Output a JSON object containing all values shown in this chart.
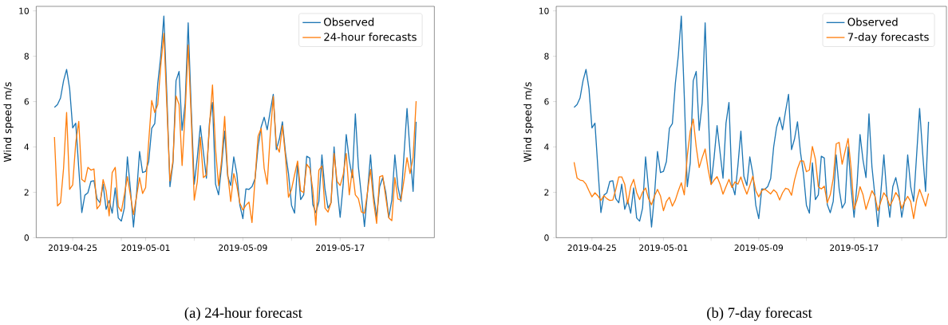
{
  "chart_data": [
    {
      "type": "line",
      "ylabel": "Wind speed m/s",
      "annotations": [
        "(a) 24-hour forecast"
      ],
      "legend": "top right",
      "x": [
        "2019-04-23T12:00",
        "2019-04-23T18:00",
        "2019-04-24T00:00",
        "2019-04-24T06:00",
        "2019-04-24T12:00",
        "2019-04-24T18:00",
        "2019-04-25T00:00",
        "2019-04-25T06:00",
        "2019-04-25T12:00",
        "2019-04-25T18:00",
        "2019-04-26T00:00",
        "2019-04-26T06:00",
        "2019-04-26T12:00",
        "2019-04-26T18:00",
        "2019-04-27T00:00",
        "2019-04-27T06:00",
        "2019-04-27T12:00",
        "2019-04-27T18:00",
        "2019-04-28T00:00",
        "2019-04-28T06:00",
        "2019-04-28T12:00",
        "2019-04-28T18:00",
        "2019-04-29T00:00",
        "2019-04-29T06:00",
        "2019-04-29T12:00",
        "2019-04-29T18:00",
        "2019-04-30T00:00",
        "2019-04-30T06:00",
        "2019-04-30T12:00",
        "2019-04-30T18:00",
        "2019-05-01T00:00",
        "2019-05-01T06:00",
        "2019-05-01T12:00",
        "2019-05-01T18:00",
        "2019-05-02T00:00",
        "2019-05-02T06:00",
        "2019-05-02T12:00",
        "2019-05-02T18:00",
        "2019-05-03T00:00",
        "2019-05-03T06:00",
        "2019-05-03T12:00",
        "2019-05-03T18:00",
        "2019-05-04T00:00",
        "2019-05-04T06:00",
        "2019-05-04T12:00",
        "2019-05-04T18:00",
        "2019-05-05T00:00",
        "2019-05-05T06:00",
        "2019-05-05T12:00",
        "2019-05-05T18:00",
        "2019-05-06T00:00",
        "2019-05-06T06:00",
        "2019-05-06T12:00",
        "2019-05-06T18:00",
        "2019-05-07T00:00",
        "2019-05-07T06:00",
        "2019-05-07T12:00",
        "2019-05-07T18:00",
        "2019-05-08T00:00",
        "2019-05-08T06:00",
        "2019-05-08T12:00",
        "2019-05-08T18:00",
        "2019-05-09T00:00",
        "2019-05-09T06:00",
        "2019-05-09T12:00",
        "2019-05-09T18:00",
        "2019-05-10T00:00",
        "2019-05-10T06:00",
        "2019-05-10T12:00",
        "2019-05-10T18:00",
        "2019-05-11T00:00",
        "2019-05-11T06:00",
        "2019-05-11T12:00",
        "2019-05-11T18:00",
        "2019-05-12T00:00",
        "2019-05-12T06:00",
        "2019-05-12T12:00",
        "2019-05-12T18:00",
        "2019-05-13T00:00",
        "2019-05-13T06:00",
        "2019-05-13T12:00",
        "2019-05-13T18:00",
        "2019-05-14T00:00",
        "2019-05-14T06:00",
        "2019-05-14T12:00",
        "2019-05-14T18:00",
        "2019-05-15T00:00",
        "2019-05-15T06:00",
        "2019-05-15T12:00",
        "2019-05-15T18:00",
        "2019-05-16T00:00",
        "2019-05-16T06:00",
        "2019-05-16T12:00",
        "2019-05-16T18:00",
        "2019-05-17T00:00",
        "2019-05-17T06:00",
        "2019-05-17T12:00",
        "2019-05-17T18:00",
        "2019-05-18T00:00",
        "2019-05-18T06:00",
        "2019-05-18T12:00",
        "2019-05-18T18:00",
        "2019-05-19T00:00",
        "2019-05-19T06:00",
        "2019-05-19T12:00",
        "2019-05-19T18:00",
        "2019-05-20T00:00",
        "2019-05-20T06:00",
        "2019-05-20T12:00",
        "2019-05-20T18:00",
        "2019-05-21T00:00",
        "2019-05-21T06:00",
        "2019-05-21T12:00",
        "2019-05-21T18:00",
        "2019-05-22T00:00",
        "2019-05-22T06:00",
        "2019-05-22T12:00",
        "2019-05-22T18:00",
        "2019-05-23T00:00",
        "2019-05-23T06:00"
      ],
      "series": [
        {
          "name": "Observed",
          "color": "#1f77b4",
          "values": [
            5.75,
            5.87,
            6.16,
            6.92,
            7.42,
            6.57,
            4.84,
            5.05,
            3.06,
            1.11,
            1.87,
            1.98,
            2.48,
            2.51,
            1.72,
            1.54,
            2.36,
            1.25,
            1.64,
            1.08,
            2.19,
            0.87,
            0.73,
            1.31,
            3.56,
            2.13,
            0.47,
            1.89,
            3.8,
            2.87,
            2.92,
            3.36,
            4.82,
            5.03,
            6.81,
            8.04,
            9.77,
            6.22,
            2.25,
            3.3,
            6.92,
            7.33,
            4.73,
            5.93,
            9.47,
            5.7,
            2.36,
            3.53,
            4.94,
            3.77,
            2.62,
            5.05,
            5.96,
            2.36,
            1.89,
            3.18,
            4.7,
            2.71,
            2.3,
            3.56,
            2.83,
            1.43,
            0.84,
            2.15,
            2.13,
            2.25,
            2.6,
            4.0,
            4.88,
            5.31,
            4.76,
            5.58,
            6.32,
            3.88,
            4.35,
            5.11,
            3.77,
            2.83,
            1.43,
            1.08,
            3.3,
            1.68,
            1.89,
            3.59,
            3.51,
            1.46,
            1.1,
            1.6,
            3.65,
            2.13,
            1.31,
            1.54,
            4.0,
            2.19,
            0.9,
            2.36,
            4.55,
            3.42,
            2.65,
            5.46,
            3.12,
            1.84,
            0.49,
            2.01,
            3.65,
            1.89,
            0.9,
            2.25,
            2.65,
            2.01,
            0.9,
            1.66,
            3.65,
            2.25,
            1.6,
            3.65,
            5.7,
            3.77,
            2.04,
            5.11
          ]
        },
        {
          "name": "24-hour forecasts",
          "color": "#ff7f0e",
          "values": [
            4.44,
            1.4,
            1.54,
            3.06,
            5.52,
            2.13,
            2.33,
            4.18,
            5.13,
            2.57,
            2.46,
            3.1,
            2.98,
            3.03,
            1.27,
            1.45,
            2.56,
            2.07,
            0.96,
            2.87,
            3.1,
            1.37,
            1.16,
            1.89,
            2.69,
            1.87,
            1.02,
            1.81,
            2.65,
            1.95,
            2.21,
            4.23,
            6.05,
            5.52,
            5.87,
            7.63,
            9.01,
            5.75,
            2.5,
            3.4,
            6.25,
            5.87,
            3.18,
            5.52,
            8.5,
            5.29,
            1.66,
            2.46,
            4.43,
            2.65,
            2.77,
            4.94,
            6.73,
            3.91,
            2.29,
            3.42,
            5.35,
            2.83,
            1.6,
            2.83,
            2.3,
            1.52,
            1.22,
            1.43,
            1.57,
            0.67,
            2.6,
            4.47,
            4.82,
            3.06,
            2.36,
            4.53,
            6.22,
            4.06,
            3.77,
            4.94,
            3.59,
            1.78,
            2.13,
            2.77,
            3.38,
            2.07,
            1.99,
            3.24,
            3.06,
            2.13,
            0.55,
            2.98,
            3.16,
            1.31,
            1.13,
            1.54,
            3.71,
            2.48,
            2.3,
            2.77,
            3.71,
            1.89,
            3.01,
            1.89,
            1.72,
            1.13,
            1.08,
            2.01,
            3.01,
            1.6,
            0.63,
            2.69,
            2.74,
            1.78,
            0.87,
            0.75,
            2.65,
            1.7,
            1.66,
            2.54,
            3.53,
            2.83,
            3.53,
            6.02
          ]
        }
      ],
      "xlim": [
        "2019-04-22T00:00",
        "2019-05-24T18:00"
      ],
      "xticks": [
        {
          "value": "2019-04-25",
          "label": "2019-04-25"
        },
        {
          "value": "2019-04-29",
          "label": null
        },
        {
          "value": "2019-05-01",
          "label": "2019-05-01"
        },
        {
          "value": "2019-05-05",
          "label": null
        },
        {
          "value": "2019-05-09",
          "label": "2019-05-09"
        },
        {
          "value": "2019-05-13",
          "label": null
        },
        {
          "value": "2019-05-17",
          "label": "2019-05-17"
        },
        {
          "value": "2019-05-21",
          "label": null
        }
      ],
      "ylim": [
        0,
        10.2
      ],
      "yticks": [
        0,
        2,
        4,
        6,
        8,
        10
      ]
    },
    {
      "type": "line",
      "ylabel": "Wind speed m/s",
      "annotations": [
        "(b) 7-day forecast"
      ],
      "legend": "top right",
      "x": [
        "2019-04-23T12:00",
        "2019-04-23T18:00",
        "2019-04-24T00:00",
        "2019-04-24T06:00",
        "2019-04-24T12:00",
        "2019-04-24T18:00",
        "2019-04-25T00:00",
        "2019-04-25T06:00",
        "2019-04-25T12:00",
        "2019-04-25T18:00",
        "2019-04-26T00:00",
        "2019-04-26T06:00",
        "2019-04-26T12:00",
        "2019-04-26T18:00",
        "2019-04-27T00:00",
        "2019-04-27T06:00",
        "2019-04-27T12:00",
        "2019-04-27T18:00",
        "2019-04-28T00:00",
        "2019-04-28T06:00",
        "2019-04-28T12:00",
        "2019-04-28T18:00",
        "2019-04-29T00:00",
        "2019-04-29T06:00",
        "2019-04-29T12:00",
        "2019-04-29T18:00",
        "2019-04-30T00:00",
        "2019-04-30T06:00",
        "2019-04-30T12:00",
        "2019-04-30T18:00",
        "2019-05-01T00:00",
        "2019-05-01T06:00",
        "2019-05-01T12:00",
        "2019-05-01T18:00",
        "2019-05-02T00:00",
        "2019-05-02T06:00",
        "2019-05-02T12:00",
        "2019-05-02T18:00",
        "2019-05-03T00:00",
        "2019-05-03T06:00",
        "2019-05-03T12:00",
        "2019-05-03T18:00",
        "2019-05-04T00:00",
        "2019-05-04T06:00",
        "2019-05-04T12:00",
        "2019-05-04T18:00",
        "2019-05-05T00:00",
        "2019-05-05T06:00",
        "2019-05-05T12:00",
        "2019-05-05T18:00",
        "2019-05-06T00:00",
        "2019-05-06T06:00",
        "2019-05-06T12:00",
        "2019-05-06T18:00",
        "2019-05-07T00:00",
        "2019-05-07T06:00",
        "2019-05-07T12:00",
        "2019-05-07T18:00",
        "2019-05-08T00:00",
        "2019-05-08T06:00",
        "2019-05-08T12:00",
        "2019-05-08T18:00",
        "2019-05-09T00:00",
        "2019-05-09T06:00",
        "2019-05-09T12:00",
        "2019-05-09T18:00",
        "2019-05-10T00:00",
        "2019-05-10T06:00",
        "2019-05-10T12:00",
        "2019-05-10T18:00",
        "2019-05-11T00:00",
        "2019-05-11T06:00",
        "2019-05-11T12:00",
        "2019-05-11T18:00",
        "2019-05-12T00:00",
        "2019-05-12T06:00",
        "2019-05-12T12:00",
        "2019-05-12T18:00",
        "2019-05-13T00:00",
        "2019-05-13T06:00",
        "2019-05-13T12:00",
        "2019-05-13T18:00",
        "2019-05-14T00:00",
        "2019-05-14T06:00",
        "2019-05-14T12:00",
        "2019-05-14T18:00",
        "2019-05-15T00:00",
        "2019-05-15T06:00",
        "2019-05-15T12:00",
        "2019-05-15T18:00",
        "2019-05-16T00:00",
        "2019-05-16T06:00",
        "2019-05-16T12:00",
        "2019-05-16T18:00",
        "2019-05-17T00:00",
        "2019-05-17T06:00",
        "2019-05-17T12:00",
        "2019-05-17T18:00",
        "2019-05-18T00:00",
        "2019-05-18T06:00",
        "2019-05-18T12:00",
        "2019-05-18T18:00",
        "2019-05-19T00:00",
        "2019-05-19T06:00",
        "2019-05-19T12:00",
        "2019-05-19T18:00",
        "2019-05-20T00:00",
        "2019-05-20T06:00",
        "2019-05-20T12:00",
        "2019-05-20T18:00",
        "2019-05-21T00:00",
        "2019-05-21T06:00",
        "2019-05-21T12:00",
        "2019-05-21T18:00",
        "2019-05-22T00:00",
        "2019-05-22T06:00",
        "2019-05-22T12:00",
        "2019-05-22T18:00",
        "2019-05-23T00:00",
        "2019-05-23T06:00"
      ],
      "series": [
        {
          "name": "Observed",
          "color": "#1f77b4",
          "values": [
            5.75,
            5.87,
            6.16,
            6.92,
            7.42,
            6.57,
            4.84,
            5.05,
            3.06,
            1.11,
            1.87,
            1.98,
            2.48,
            2.51,
            1.72,
            1.54,
            2.36,
            1.25,
            1.64,
            1.08,
            2.19,
            0.87,
            0.73,
            1.31,
            3.56,
            2.13,
            0.47,
            1.89,
            3.8,
            2.87,
            2.92,
            3.36,
            4.82,
            5.03,
            6.81,
            8.04,
            9.77,
            6.22,
            2.25,
            3.3,
            6.92,
            7.33,
            4.73,
            5.93,
            9.47,
            5.7,
            2.36,
            3.53,
            4.94,
            3.77,
            2.62,
            5.05,
            5.96,
            2.36,
            1.89,
            3.18,
            4.7,
            2.71,
            2.3,
            3.56,
            2.83,
            1.43,
            0.84,
            2.15,
            2.13,
            2.25,
            2.6,
            4.0,
            4.88,
            5.31,
            4.76,
            5.58,
            6.32,
            3.88,
            4.35,
            5.11,
            3.77,
            2.83,
            1.43,
            1.08,
            3.3,
            1.68,
            1.89,
            3.59,
            3.51,
            1.46,
            1.1,
            1.6,
            3.65,
            2.13,
            1.31,
            1.54,
            4.0,
            2.19,
            0.9,
            2.36,
            4.55,
            3.42,
            2.65,
            5.46,
            3.12,
            1.84,
            0.49,
            2.01,
            3.65,
            1.89,
            0.9,
            2.25,
            2.65,
            2.01,
            0.9,
            1.66,
            3.65,
            2.25,
            1.6,
            3.65,
            5.7,
            3.77,
            2.04,
            5.11
          ]
        },
        {
          "name": "7-day forecasts",
          "color": "#ff7f0e",
          "values": [
            3.33,
            2.63,
            2.54,
            2.51,
            2.36,
            2.07,
            1.8,
            1.98,
            1.84,
            1.64,
            1.85,
            1.72,
            1.64,
            1.66,
            2.13,
            2.68,
            2.68,
            2.36,
            1.49,
            2.25,
            2.57,
            1.99,
            1.68,
            2.01,
            2.19,
            1.72,
            1.45,
            1.84,
            2.13,
            1.84,
            1.19,
            1.6,
            1.78,
            1.39,
            1.66,
            2.07,
            2.42,
            1.89,
            3.6,
            4.7,
            5.23,
            4.0,
            3.09,
            3.53,
            3.91,
            3.01,
            2.34,
            2.54,
            2.69,
            2.36,
            1.92,
            2.25,
            2.57,
            2.21,
            2.46,
            2.36,
            2.68,
            2.25,
            1.92,
            2.3,
            2.71,
            2.07,
            1.8,
            2.07,
            2.15,
            2.04,
            1.93,
            2.11,
            1.99,
            1.66,
            1.98,
            2.18,
            2.13,
            1.87,
            2.54,
            3.04,
            3.39,
            3.38,
            2.91,
            2.98,
            4.02,
            3.47,
            2.25,
            2.15,
            2.27,
            1.54,
            1.89,
            2.6,
            4.14,
            4.2,
            3.24,
            3.82,
            4.37,
            3.06,
            1.25,
            1.66,
            2.25,
            1.89,
            1.25,
            1.66,
            2.07,
            1.84,
            1.19,
            1.6,
            1.98,
            1.78,
            1.4,
            1.66,
            1.99,
            1.78,
            1.29,
            1.6,
            1.82,
            1.6,
            0.84,
            1.66,
            2.13,
            1.78,
            1.39,
            1.95
          ]
        }
      ],
      "xlim": [
        "2019-04-22T00:00",
        "2019-05-24T18:00"
      ],
      "xticks": [
        {
          "value": "2019-04-25",
          "label": "2019-04-25"
        },
        {
          "value": "2019-04-29",
          "label": null
        },
        {
          "value": "2019-05-01",
          "label": "2019-05-01"
        },
        {
          "value": "2019-05-05",
          "label": null
        },
        {
          "value": "2019-05-09",
          "label": "2019-05-09"
        },
        {
          "value": "2019-05-13",
          "label": null
        },
        {
          "value": "2019-05-17",
          "label": "2019-05-17"
        },
        {
          "value": "2019-05-21",
          "label": null
        }
      ],
      "ylim": [
        0,
        10.2
      ],
      "yticks": [
        0,
        2,
        4,
        6,
        8,
        10
      ]
    }
  ]
}
